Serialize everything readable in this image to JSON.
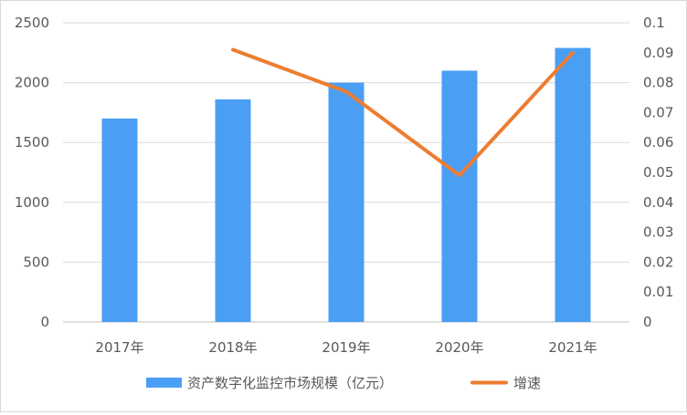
{
  "chart_data": {
    "type": "bar",
    "categories": [
      "2017年",
      "2018年",
      "2019年",
      "2020年",
      "2021年"
    ],
    "series": [
      {
        "name": "资产数字化监控市场规模（亿元）",
        "type": "bar",
        "axis": "left",
        "color": "#4a9ff5",
        "values": [
          1700,
          1860,
          2000,
          2100,
          2290
        ]
      },
      {
        "name": "增速",
        "type": "line",
        "axis": "right",
        "color": "#ed7d31",
        "values": [
          null,
          0.091,
          0.077,
          0.049,
          0.09
        ]
      }
    ],
    "y_left": {
      "min": 0,
      "max": 2500,
      "ticks": [
        "0",
        "500",
        "1000",
        "1500",
        "2000",
        "2500"
      ]
    },
    "y_right": {
      "min": 0,
      "max": 0.1,
      "ticks": [
        "0",
        "0.01",
        "0.02",
        "0.03",
        "0.04",
        "0.05",
        "0.06",
        "0.07",
        "0.08",
        "0.09",
        "0.1"
      ]
    },
    "grid": true,
    "legend_position": "bottom"
  }
}
